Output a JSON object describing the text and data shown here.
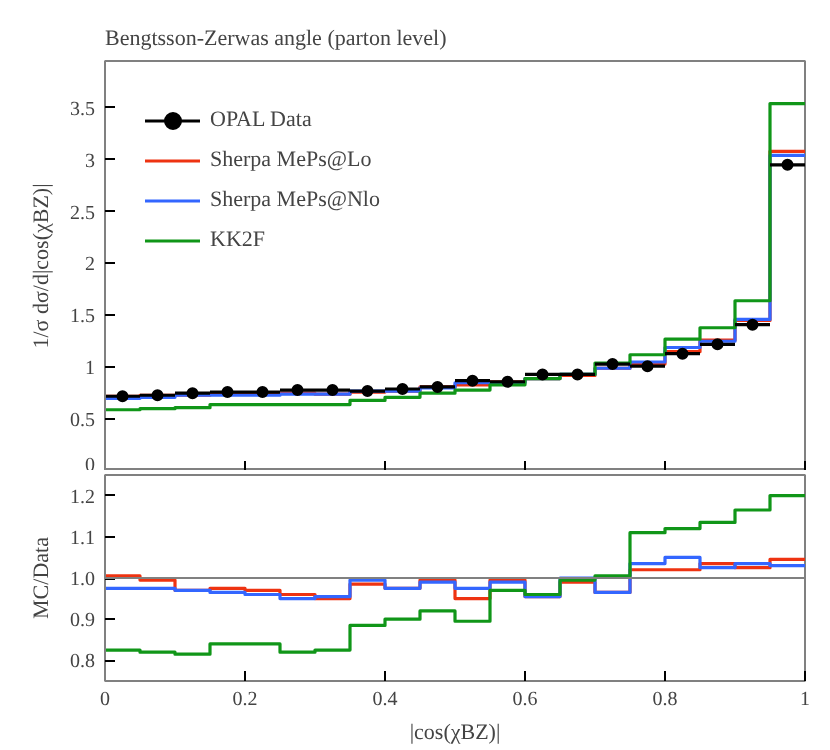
{
  "chart_data": [
    {
      "type": "histogram",
      "title": "Bengtsson-Zerwas angle (parton level)",
      "ylabel": "1/σ dσ/d|cos(χBZ)|",
      "bins": [
        0,
        0.05,
        0.1,
        0.15,
        0.2,
        0.25,
        0.3,
        0.35,
        0.4,
        0.45,
        0.5,
        0.55,
        0.6,
        0.65,
        0.7,
        0.75,
        0.8,
        0.85,
        0.9,
        0.95,
        1.0
      ],
      "xlim": [
        0,
        1
      ],
      "ylim": [
        0,
        3.95
      ],
      "xticks": [
        0,
        0.2,
        0.4,
        0.6,
        0.8,
        1
      ],
      "yticks": [
        0,
        0.5,
        1,
        1.5,
        2,
        2.5,
        3,
        3.5
      ],
      "tick_labels": "y",
      "grid": false,
      "legend": "top left",
      "series": [
        {
          "name": "OPAL Data",
          "type": "scatter",
          "color": "#000000",
          "marker": "circle",
          "x": [
            0.025,
            0.075,
            0.125,
            0.175,
            0.225,
            0.275,
            0.325,
            0.375,
            0.425,
            0.475,
            0.525,
            0.575,
            0.625,
            0.675,
            0.725,
            0.775,
            0.825,
            0.875,
            0.925,
            0.975
          ],
          "values": [
            0.72,
            0.73,
            0.75,
            0.76,
            0.76,
            0.78,
            0.78,
            0.77,
            0.79,
            0.81,
            0.87,
            0.86,
            0.93,
            0.93,
            1.03,
            1.01,
            1.13,
            1.22,
            1.41,
            2.95
          ],
          "xerrors": [
            0.025,
            0.025,
            0.025,
            0.025,
            0.025,
            0.025,
            0.025,
            0.025,
            0.025,
            0.025,
            0.025,
            0.025,
            0.025,
            0.025,
            0.025,
            0.025,
            0.025,
            0.025,
            0.025,
            0.025
          ]
        },
        {
          "name": "Sherpa MePs@Lo",
          "color": "#ee3311",
          "values": [
            0.72,
            0.73,
            0.73,
            0.74,
            0.74,
            0.75,
            0.74,
            0.76,
            0.77,
            0.81,
            0.83,
            0.86,
            0.89,
            0.92,
            0.99,
            1.03,
            1.15,
            1.26,
            1.45,
            3.08
          ]
        },
        {
          "name": "Sherpa MePs@Nlo",
          "color": "#3366ff",
          "values": [
            0.7,
            0.71,
            0.73,
            0.73,
            0.73,
            0.74,
            0.74,
            0.77,
            0.77,
            0.8,
            0.85,
            0.85,
            0.89,
            0.93,
            0.99,
            1.05,
            1.19,
            1.25,
            1.46,
            3.04
          ]
        },
        {
          "name": "KK2F",
          "color": "#109618",
          "values": [
            0.59,
            0.6,
            0.61,
            0.64,
            0.64,
            0.64,
            0.64,
            0.68,
            0.71,
            0.75,
            0.78,
            0.83,
            0.89,
            0.93,
            1.04,
            1.12,
            1.27,
            1.38,
            1.64,
            3.54
          ]
        }
      ]
    },
    {
      "type": "histogram",
      "xlabel": "|cos(χBZ)|",
      "ylabel": "MC/Data",
      "bins": [
        0,
        0.05,
        0.1,
        0.15,
        0.2,
        0.25,
        0.3,
        0.35,
        0.4,
        0.45,
        0.5,
        0.55,
        0.6,
        0.65,
        0.7,
        0.75,
        0.8,
        0.85,
        0.9,
        0.95,
        1.0
      ],
      "xlim": [
        0,
        1
      ],
      "ylim": [
        0.75,
        1.25
      ],
      "xticks": [
        0,
        0.2,
        0.4,
        0.6,
        0.8,
        1
      ],
      "yticks": [
        0.8,
        0.9,
        {
          "value": 1.0,
          "label": "1.0"
        },
        1.1,
        1.2
      ],
      "grid": false,
      "ref_lines": [
        {
          "axis": "y",
          "value": 1.0,
          "color": "#808080"
        }
      ],
      "series": [
        {
          "color": "#ee3311",
          "values": [
            1.005,
            0.995,
            0.97,
            0.975,
            0.97,
            0.96,
            0.95,
            0.985,
            0.975,
            0.995,
            0.95,
            0.995,
            0.955,
            0.99,
            0.965,
            1.02,
            1.02,
            1.035,
            1.025,
            1.045
          ]
        },
        {
          "color": "#3366ff",
          "values": [
            0.975,
            0.975,
            0.97,
            0.965,
            0.96,
            0.95,
            0.955,
            0.995,
            0.975,
            0.99,
            0.975,
            0.99,
            0.955,
            1.0,
            0.965,
            1.035,
            1.05,
            1.025,
            1.035,
            1.03
          ]
        },
        {
          "color": "#109618",
          "values": [
            0.825,
            0.82,
            0.815,
            0.84,
            0.84,
            0.82,
            0.825,
            0.885,
            0.9,
            0.92,
            0.895,
            0.97,
            0.96,
            0.995,
            1.005,
            1.11,
            1.12,
            1.135,
            1.165,
            1.2
          ]
        }
      ]
    }
  ]
}
